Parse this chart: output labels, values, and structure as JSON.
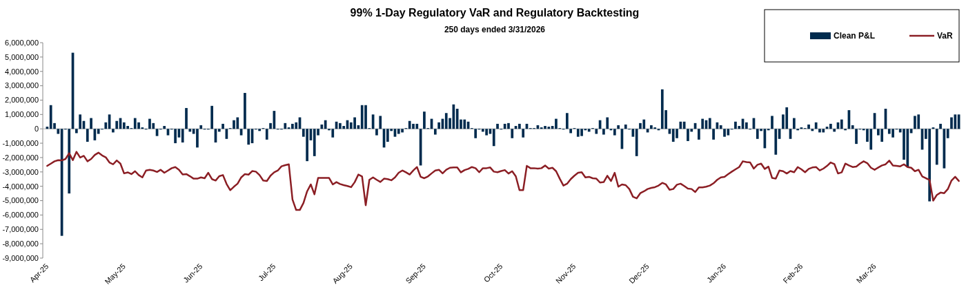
{
  "chart_data": {
    "type": "bar",
    "title": "99% 1-Day Regulatory VaR and Regulatory Backtesting",
    "subtitle": "250 days ended 3/31/2026",
    "legend": "top right",
    "ylim": [
      -9000000,
      6000000
    ],
    "yticks": [
      {
        "value": 6000000,
        "label": "6,000,000"
      },
      {
        "value": 5000000,
        "label": "5,000,000"
      },
      {
        "value": 4000000,
        "label": "4,000,000"
      },
      {
        "value": 3000000,
        "label": "3,000,000"
      },
      {
        "value": 2000000,
        "label": "2,000,000"
      },
      {
        "value": 1000000,
        "label": "1,000,000"
      },
      0,
      {
        "value": -1000000,
        "label": "-1,000,000"
      },
      {
        "value": -2000000,
        "label": "-2,000,000"
      },
      {
        "value": -3000000,
        "label": "-3,000,000"
      },
      {
        "value": -4000000,
        "label": "-4,000,000"
      },
      {
        "value": -5000000,
        "label": "-5,000,000"
      },
      {
        "value": -6000000,
        "label": "-6,000,000"
      },
      {
        "value": -7000000,
        "label": "-7,000,000"
      },
      {
        "value": -8000000,
        "label": "-8,000,000"
      },
      {
        "value": -9000000,
        "label": "-9,000,000"
      }
    ],
    "categories": [
      "Apr-25",
      null,
      null,
      null,
      null,
      null,
      null,
      null,
      null,
      null,
      null,
      null,
      null,
      null,
      null,
      null,
      null,
      null,
      null,
      null,
      null,
      "May-25",
      null,
      null,
      null,
      null,
      null,
      null,
      null,
      null,
      null,
      null,
      null,
      null,
      null,
      null,
      null,
      null,
      null,
      null,
      null,
      null,
      "Jun-25",
      null,
      null,
      null,
      null,
      null,
      null,
      null,
      null,
      null,
      null,
      null,
      null,
      null,
      null,
      null,
      null,
      null,
      null,
      null,
      "Jul-25",
      null,
      null,
      null,
      null,
      null,
      null,
      null,
      null,
      null,
      null,
      null,
      null,
      null,
      null,
      null,
      null,
      null,
      null,
      null,
      null,
      "Aug-25",
      null,
      null,
      null,
      null,
      null,
      null,
      null,
      null,
      null,
      null,
      null,
      null,
      null,
      null,
      null,
      null,
      null,
      null,
      null,
      "Sep-25",
      null,
      null,
      null,
      null,
      null,
      null,
      null,
      null,
      null,
      null,
      null,
      null,
      null,
      null,
      null,
      null,
      null,
      null,
      null,
      null,
      "Oct-25",
      null,
      null,
      null,
      null,
      null,
      null,
      null,
      null,
      null,
      null,
      null,
      null,
      null,
      null,
      null,
      null,
      null,
      null,
      null,
      "Nov-25",
      null,
      null,
      null,
      null,
      null,
      null,
      null,
      null,
      null,
      null,
      null,
      null,
      null,
      null,
      null,
      null,
      null,
      null,
      null,
      "Dec-25",
      null,
      null,
      null,
      null,
      null,
      null,
      null,
      null,
      null,
      null,
      null,
      null,
      null,
      null,
      null,
      null,
      null,
      null,
      null,
      null,
      "Jan-26",
      null,
      null,
      null,
      null,
      null,
      null,
      null,
      null,
      null,
      null,
      null,
      null,
      null,
      null,
      null,
      null,
      null,
      null,
      null,
      null,
      "Feb-26",
      null,
      null,
      null,
      null,
      null,
      null,
      null,
      null,
      null,
      null,
      null,
      null,
      null,
      null,
      null,
      null,
      null,
      null,
      null,
      "Mar-26",
      null,
      null,
      null,
      null,
      null,
      null,
      null,
      null,
      null,
      null,
      null,
      null,
      null,
      null,
      null,
      null,
      null,
      null,
      null,
      null,
      null,
      null,
      null
    ],
    "series": [
      {
        "name": "Clean P&L",
        "color": "#002b4e",
        "values": [
          150000,
          1650000,
          400000,
          -350000,
          -7450000,
          -50000,
          -4500000,
          5300000,
          -300000,
          1000000,
          550000,
          -900000,
          750000,
          -800000,
          -350000,
          -50000,
          450000,
          1000000,
          -250000,
          550000,
          750000,
          450000,
          200000,
          50000,
          750000,
          450000,
          100000,
          -50000,
          700000,
          400000,
          -500000,
          -50000,
          200000,
          -450000,
          -50000,
          -1000000,
          -600000,
          -950000,
          1450000,
          -200000,
          -350000,
          -1300000,
          250000,
          -50000,
          -50000,
          1600000,
          -950000,
          -200000,
          350000,
          -700000,
          50000,
          600000,
          800000,
          -450000,
          2500000,
          -1100000,
          -1000000,
          -50000,
          -150000,
          50000,
          -750000,
          400000,
          1250000,
          -50000,
          -50000,
          400000,
          100000,
          350000,
          450000,
          800000,
          -550000,
          -2250000,
          -800000,
          -1900000,
          -450000,
          300000,
          600000,
          -100000,
          -600000,
          500000,
          400000,
          200000,
          600000,
          450000,
          800000,
          250000,
          1650000,
          1650000,
          50000,
          1000000,
          -450000,
          900000,
          -1300000,
          -900000,
          -150000,
          -550000,
          -350000,
          -250000,
          50000,
          550000,
          350000,
          350000,
          -2550000,
          1200000,
          50000,
          700000,
          -400000,
          450000,
          700000,
          1100000,
          750000,
          1700000,
          1400000,
          650000,
          650000,
          500000,
          50000,
          -650000,
          -50000,
          -200000,
          -450000,
          -350000,
          -1200000,
          350000,
          -50000,
          350000,
          400000,
          -650000,
          200000,
          350000,
          -600000,
          350000,
          50000,
          50000,
          250000,
          100000,
          200000,
          150000,
          200000,
          700000,
          50000,
          -50000,
          1100000,
          -300000,
          50000,
          -550000,
          -500000,
          -100000,
          -200000,
          50000,
          -350000,
          600000,
          -400000,
          800000,
          -100000,
          -450000,
          250000,
          -1400000,
          300000,
          -50000,
          -550000,
          -1900000,
          400000,
          650000,
          -250000,
          250000,
          100000,
          -100000,
          2750000,
          1300000,
          -350000,
          -900000,
          -650000,
          500000,
          500000,
          -850000,
          -200000,
          400000,
          -750000,
          700000,
          600000,
          750000,
          -750000,
          450000,
          250000,
          -550000,
          -450000,
          -50000,
          500000,
          200000,
          700000,
          450000,
          -50000,
          750000,
          -700000,
          -150000,
          -1350000,
          -100000,
          900000,
          -1800000,
          -700000,
          1000000,
          1500000,
          -700000,
          750000,
          -100000,
          100000,
          50000,
          300000,
          -150000,
          450000,
          -250000,
          -250000,
          150000,
          350000,
          -200000,
          450000,
          650000,
          -100000,
          1300000,
          250000,
          -1050000,
          -50000,
          -100000,
          -900000,
          -1450000,
          1100000,
          -450000,
          -900000,
          1400000,
          -350000,
          -600000,
          -50000,
          -250000,
          -2150000,
          -2650000,
          -300000,
          900000,
          1000000,
          -1450000,
          -700000,
          -5050000,
          100000,
          -2500000,
          350000,
          -2750000,
          -650000,
          800000,
          1000000,
          1000000
        ]
      },
      {
        "name": "VaR",
        "type": "line",
        "color": "#8b1e24",
        "values": [
          -2580000,
          -2420000,
          -2260000,
          -2180000,
          -2200000,
          -2100000,
          -1700000,
          -2180000,
          -1600000,
          -2000000,
          -1880000,
          -2260000,
          -2100000,
          -1820000,
          -1660000,
          -1850000,
          -1980000,
          -2340000,
          -2470000,
          -2200000,
          -2420000,
          -3100000,
          -3030000,
          -3150000,
          -2950000,
          -3220000,
          -3380000,
          -2900000,
          -2850000,
          -2900000,
          -3000000,
          -2850000,
          -3060000,
          -2900000,
          -2740000,
          -2660000,
          -2850000,
          -3180000,
          -3150000,
          -3300000,
          -3470000,
          -3470000,
          -3380000,
          -3440000,
          -3060000,
          -3500000,
          -3600000,
          -3300000,
          -3220000,
          -3840000,
          -4270000,
          -4030000,
          -3820000,
          -3380000,
          -3150000,
          -3190000,
          -2940000,
          -2980000,
          -3220000,
          -3600000,
          -3630000,
          -3260000,
          -3030000,
          -2900000,
          -2610000,
          -2530000,
          -2470000,
          -4920000,
          -5650000,
          -5650000,
          -5160000,
          -4350000,
          -3870000,
          -4560000,
          -3420000,
          -3420000,
          -3420000,
          -3420000,
          -3870000,
          -3710000,
          -3840000,
          -3920000,
          -3980000,
          -4060000,
          -3710000,
          -3180000,
          -3310000,
          -5320000,
          -3550000,
          -3380000,
          -3550000,
          -3700000,
          -3470000,
          -3500000,
          -3580000,
          -3380000,
          -3060000,
          -2900000,
          -3030000,
          -3180000,
          -2900000,
          -2660000,
          -3340000,
          -3440000,
          -3310000,
          -3100000,
          -2900000,
          -2850000,
          -3100000,
          -2850000,
          -2710000,
          -2690000,
          -2690000,
          -3030000,
          -2870000,
          -2790000,
          -2660000,
          -2740000,
          -3020000,
          -2740000,
          -2740000,
          -2690000,
          -2980000,
          -3020000,
          -2940000,
          -2870000,
          -3110000,
          -2950000,
          -3310000,
          -4270000,
          -4270000,
          -2580000,
          -2740000,
          -2740000,
          -2770000,
          -2740000,
          -2550000,
          -2770000,
          -2710000,
          -2950000,
          -3470000,
          -3950000,
          -3820000,
          -3500000,
          -3260000,
          -3060000,
          -3020000,
          -3380000,
          -3340000,
          -3440000,
          -3470000,
          -3740000,
          -3710000,
          -3270000,
          -3630000,
          -3060000,
          -4030000,
          -3870000,
          -3920000,
          -4190000,
          -4730000,
          -4840000,
          -4480000,
          -4350000,
          -4190000,
          -4110000,
          -4060000,
          -3950000,
          -3760000,
          -3870000,
          -4240000,
          -4190000,
          -3890000,
          -3820000,
          -3980000,
          -4160000,
          -4190000,
          -4400000,
          -4080000,
          -4080000,
          -4030000,
          -3950000,
          -3790000,
          -3550000,
          -3380000,
          -3340000,
          -3150000,
          -2980000,
          -2820000,
          -2660000,
          -2260000,
          -2310000,
          -2340000,
          -2770000,
          -2500000,
          -2420000,
          -2790000,
          -2630000,
          -3420000,
          -3470000,
          -2900000,
          -2950000,
          -3110000,
          -2940000,
          -3020000,
          -2660000,
          -2820000,
          -3020000,
          -2790000,
          -2690000,
          -2660000,
          -2900000,
          -2770000,
          -2580000,
          -2340000,
          -2450000,
          -3110000,
          -3030000,
          -2420000,
          -2550000,
          -2660000,
          -2630000,
          -2420000,
          -2260000,
          -2390000,
          -2710000,
          -2850000,
          -2690000,
          -2550000,
          -2470000,
          -2210000,
          -2550000,
          -2580000,
          -2610000,
          -2470000,
          -2660000,
          -2710000,
          -2950000,
          -2850000,
          -3310000,
          -3440000,
          -3550000,
          -5000000,
          -4600000,
          -4440000,
          -4480000,
          -4190000,
          -3600000,
          -3340000,
          -3630000
        ]
      }
    ]
  }
}
